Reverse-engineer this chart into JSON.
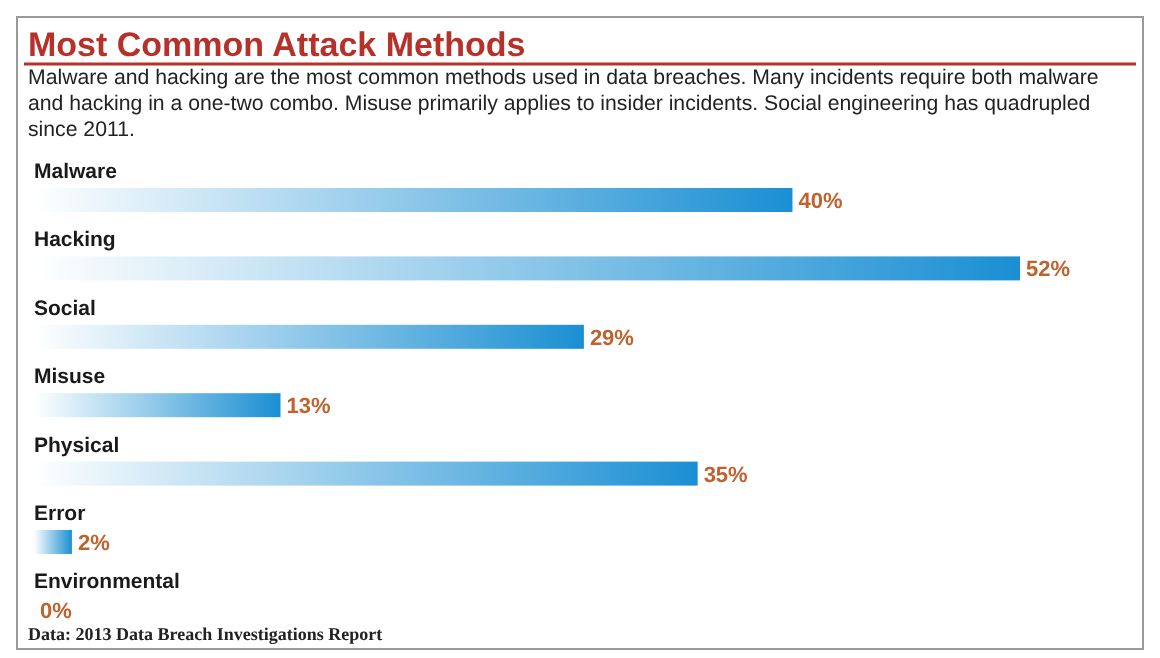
{
  "chart_data": {
    "type": "bar",
    "orientation": "horizontal",
    "title": "Most Common Attack Methods",
    "subtitle": "Malware and hacking are the most common methods used in data breaches. Many incidents require both malware and hacking in a one-two combo. Misuse primarily applies to insider incidents. Social engineering has quadrupled since 2011.",
    "categories": [
      "Malware",
      "Hacking",
      "Social",
      "Misuse",
      "Physical",
      "Error",
      "Environmental"
    ],
    "values": [
      40,
      52,
      29,
      13,
      35,
      2,
      0
    ],
    "value_labels": [
      "40%",
      "52%",
      "29%",
      "13%",
      "35%",
      "2%",
      "0%"
    ],
    "color": "#1a8fd3",
    "annotations": [
      "Data: 2013 Data Breach Investigations Report"
    ]
  }
}
